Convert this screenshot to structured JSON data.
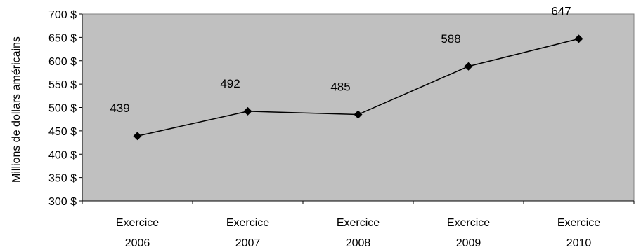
{
  "chart_data": {
    "type": "line",
    "title": "",
    "xlabel": "",
    "ylabel": "Millions de dollars américains",
    "categories": [
      [
        "Exercice",
        "2006"
      ],
      [
        "Exercice",
        "2007"
      ],
      [
        "Exercice",
        "2008"
      ],
      [
        "Exercice",
        "2009"
      ],
      [
        "Exercice",
        "2010"
      ]
    ],
    "series": [
      {
        "values": [
          439,
          492,
          485,
          588,
          647
        ],
        "data_labels": [
          "439",
          "492",
          "485",
          "588",
          "647"
        ],
        "marker": "diamond",
        "color": "#000000"
      }
    ],
    "ylim": [
      300,
      700
    ],
    "yticks": [
      300,
      350,
      400,
      450,
      500,
      550,
      600,
      650,
      700
    ],
    "ytick_labels": [
      "300 $",
      "350 $",
      "400 $",
      "450 $",
      "500 $",
      "550 $",
      "600 $",
      "650 $",
      "700 $"
    ],
    "grid": false,
    "legend": "none",
    "plot_background": "#c0c0c0",
    "line_color": "#000000"
  }
}
